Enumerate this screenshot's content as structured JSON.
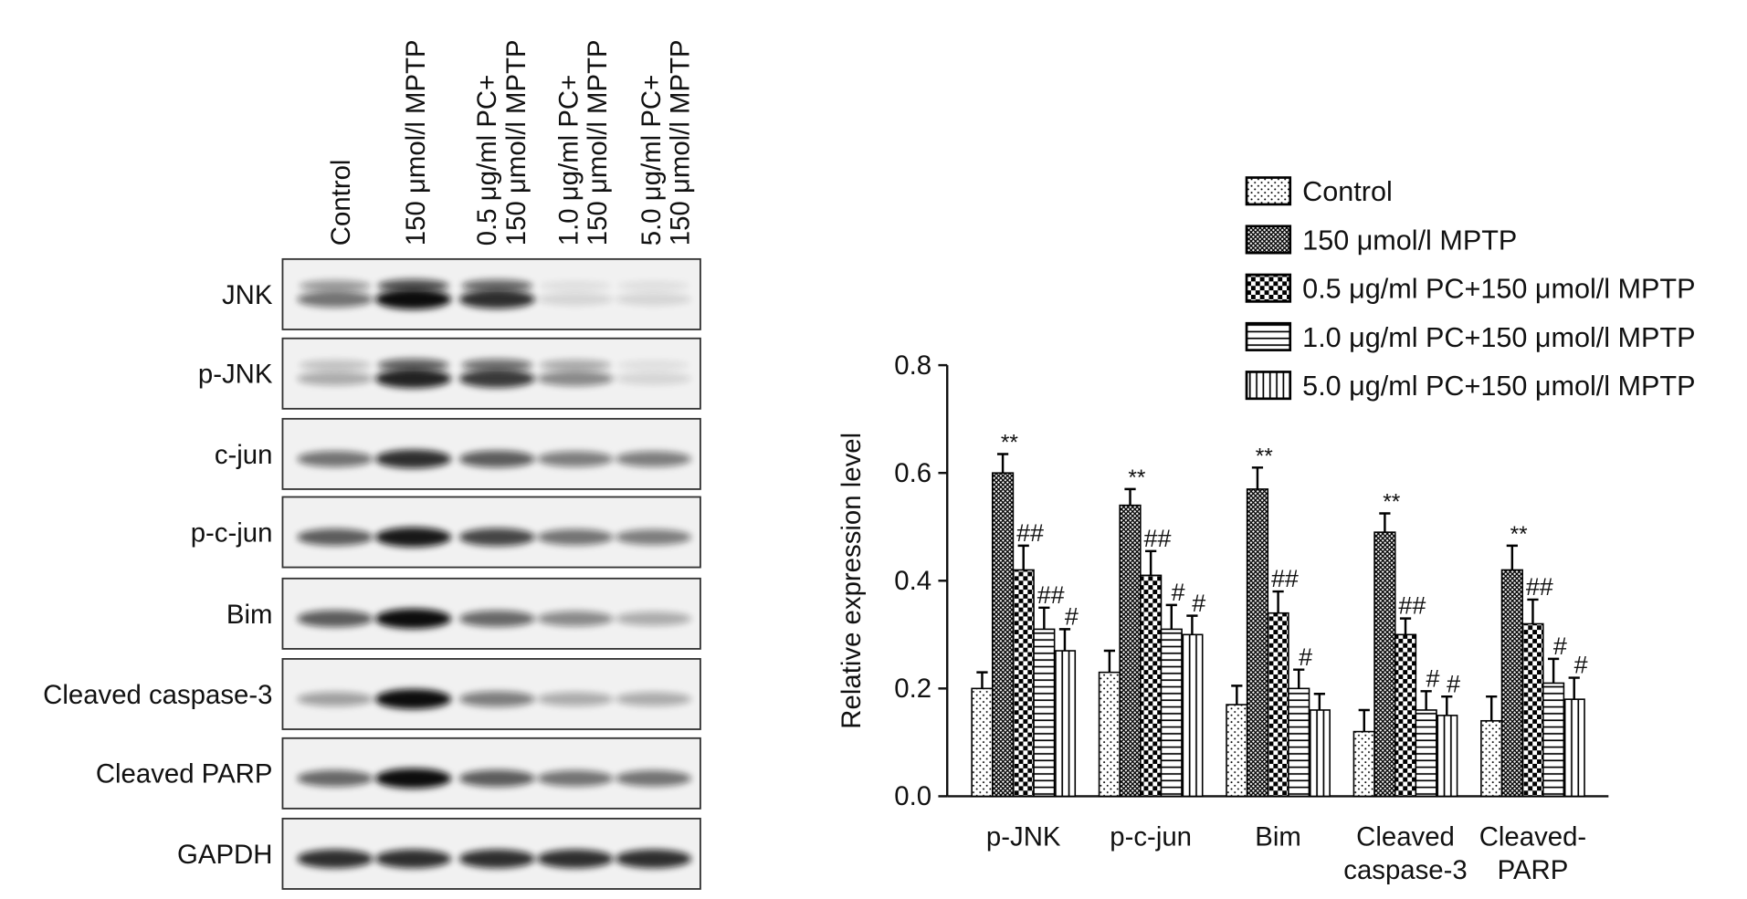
{
  "blot": {
    "lanes": [
      [
        "Control"
      ],
      [
        "150 μmol/l MPTP"
      ],
      [
        "0.5 μg/ml PC+",
        "150 μmol/l MPTP"
      ],
      [
        "1.0 μg/ml PC+",
        "150 μmol/l MPTP"
      ],
      [
        "5.0 μg/ml PC+",
        "150 μmol/l MPTP"
      ]
    ],
    "rows": [
      "JNK",
      "p-JNK",
      "c-jun",
      "p-c-jun",
      "Bim",
      "Cleaved caspase-3",
      "Cleaved PARP",
      "GAPDH"
    ]
  },
  "chart_data": {
    "type": "bar",
    "ylabel": "Relative expression level",
    "categories": [
      [
        "p-JNK"
      ],
      [
        "p-c-jun"
      ],
      [
        "Bim"
      ],
      [
        "Cleaved",
        "caspase-3"
      ],
      [
        "Cleaved-",
        "PARP"
      ]
    ],
    "ylim": [
      0,
      0.8
    ],
    "yticks": [
      {
        "value": 0,
        "label": "0.0"
      },
      0.2,
      0.4,
      0.6,
      0.8
    ],
    "legend": "upper right",
    "series": [
      {
        "name": "Control",
        "color": "#000000",
        "pattern": "dots",
        "values": [
          0.2,
          0.23,
          0.17,
          0.12,
          0.14
        ],
        "errors": [
          0.03,
          0.04,
          0.035,
          0.04,
          0.045
        ],
        "annotations": [
          null,
          null,
          null,
          null,
          null
        ]
      },
      {
        "name": "150 μmol/l MPTP",
        "color": "#000000",
        "pattern": "crosshatch",
        "values": [
          0.6,
          0.54,
          0.57,
          0.49,
          0.42
        ],
        "errors": [
          0.035,
          0.03,
          0.04,
          0.035,
          0.045
        ],
        "annotations": [
          "**",
          "**",
          "**",
          "**",
          "**"
        ]
      },
      {
        "name": "0.5 μg/ml PC+150 μmol/l MPTP",
        "color": "#000000",
        "pattern": "checker",
        "values": [
          0.42,
          0.41,
          0.34,
          0.3,
          0.32
        ],
        "errors": [
          0.045,
          0.045,
          0.04,
          0.03,
          0.045
        ],
        "annotations": [
          "##",
          "##",
          "##",
          "##",
          "##"
        ]
      },
      {
        "name": "1.0 μg/ml PC+150 μmol/l MPTP",
        "color": "#000000",
        "pattern": "hlines",
        "values": [
          0.31,
          0.31,
          0.2,
          0.16,
          0.21
        ],
        "errors": [
          0.04,
          0.045,
          0.035,
          0.035,
          0.045
        ],
        "annotations": [
          "##",
          "#",
          "#",
          "#",
          "#"
        ]
      },
      {
        "name": "5.0 μg/ml PC+150 μmol/l MPTP",
        "color": "#000000",
        "pattern": "vlines",
        "values": [
          0.27,
          0.3,
          0.16,
          0.15,
          0.18
        ],
        "errors": [
          0.04,
          0.035,
          0.03,
          0.035,
          0.04
        ],
        "annotations": [
          "#",
          "#",
          null,
          "#",
          "#"
        ]
      }
    ]
  }
}
